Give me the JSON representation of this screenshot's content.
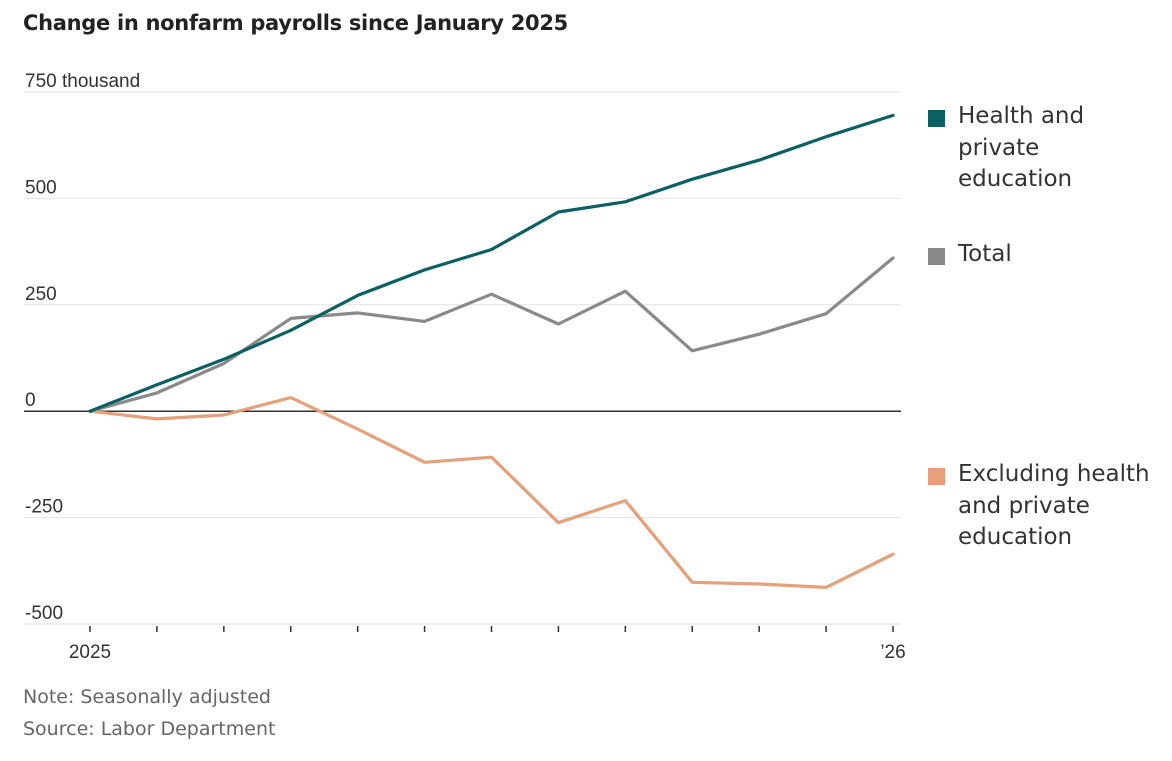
{
  "chart_data": {
    "type": "line",
    "title": "Change in nonfarm payrolls since January 2025",
    "y_unit_label": "750 thousand",
    "ylim": [
      -500,
      750
    ],
    "yticks": [
      -500,
      -250,
      0,
      250,
      500,
      750
    ],
    "ytick_labels": [
      "-500",
      "-250",
      "0",
      "250",
      "500",
      "750 thousand"
    ],
    "x": [
      0,
      1,
      2,
      3,
      4,
      5,
      6,
      7,
      8,
      9,
      10,
      11,
      12
    ],
    "xtick_labels": [
      {
        "x": 0,
        "label": "2025"
      },
      {
        "x": 12,
        "label": "’26"
      }
    ],
    "grid": true,
    "legend_position": "right",
    "series": [
      {
        "name": "Health and private education",
        "color": "#0b6162",
        "values": [
          0,
          62,
          122,
          190,
          272,
          332,
          380,
          468,
          492,
          545,
          590,
          645,
          695
        ]
      },
      {
        "name": "Total",
        "color": "#8a8a8a",
        "values": [
          0,
          43,
          112,
          218,
          231,
          211,
          275,
          205,
          282,
          142,
          181,
          229,
          360
        ]
      },
      {
        "name": "Excluding health and private education",
        "color": "#e6a07a",
        "values": [
          0,
          -18,
          -9,
          32,
          -42,
          -120,
          -108,
          -262,
          -210,
          -402,
          -406,
          -414,
          -336
        ]
      }
    ]
  },
  "legend": {
    "health_label": "Health and private education",
    "total_label": "Total",
    "excluding_label": "Excluding health and private education"
  },
  "notes": {
    "note": "Note: Seasonally adjusted",
    "source": "Source: Labor Department"
  }
}
